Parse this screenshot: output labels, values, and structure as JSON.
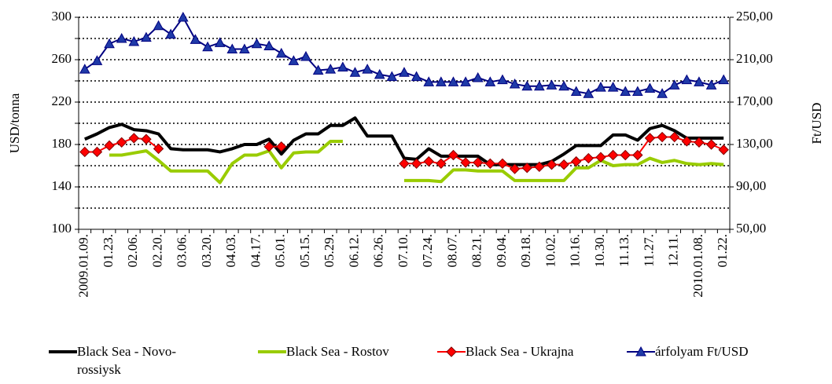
{
  "chart_data": {
    "type": "line",
    "ylabel": "USD/tonna",
    "y2label": "Ft/USD",
    "categories": [
      "2009.01.09.",
      null,
      "01.23.",
      null,
      "02.06.",
      null,
      "02.20.",
      null,
      "03.06.",
      null,
      "03.20.",
      null,
      "04.03.",
      null,
      "04.17.",
      null,
      "05.01.",
      null,
      "05.15.",
      null,
      "05.29.",
      null,
      "06.12.",
      null,
      "06.26.",
      null,
      "07.10.",
      null,
      "07.24.",
      null,
      "08.07.",
      null,
      "08.21.",
      null,
      "09.04.",
      null,
      "09.18.",
      null,
      "10.02.",
      null,
      "10.16.",
      null,
      "10.30.",
      null,
      "11.13.",
      null,
      "11.27.",
      null,
      "12.11.",
      null,
      "2010.01.08.",
      null,
      "01.22."
    ],
    "ylim": [
      100,
      300
    ],
    "yticks": [
      100,
      140,
      180,
      220,
      260,
      300
    ],
    "yminorticks": [
      120,
      160,
      200,
      240,
      280
    ],
    "y2lim": [
      50,
      250
    ],
    "y2ticks": [
      {
        "value": 50,
        "label": "50,00"
      },
      {
        "value": 90,
        "label": "90,00"
      },
      {
        "value": 130,
        "label": "130,00"
      },
      {
        "value": 170,
        "label": "170,00"
      },
      {
        "value": 210,
        "label": "210,00"
      },
      {
        "value": 250,
        "label": "250,00"
      }
    ],
    "grid": true,
    "legend": "bottom",
    "series": [
      {
        "name": "Black Sea - Novo-rossiysk",
        "color": "#000000",
        "marker": "none",
        "values": [
          185,
          190,
          196,
          199,
          194,
          193,
          190,
          176,
          175,
          175,
          175,
          173,
          176,
          180,
          180,
          185,
          171,
          184,
          190,
          190,
          198,
          198,
          205,
          188,
          188,
          188,
          167,
          166,
          176,
          169,
          169,
          169,
          169,
          161,
          161,
          161,
          161,
          161,
          164,
          171,
          179,
          179,
          179,
          189,
          189,
          184,
          195,
          198,
          193,
          186,
          186,
          186,
          186
        ]
      },
      {
        "name": "Black Sea - Rostov",
        "color": "#99cc00",
        "marker": "none",
        "values": [
          null,
          null,
          170,
          170,
          172,
          174,
          165,
          155,
          155,
          155,
          155,
          144,
          162,
          170,
          170,
          174,
          158,
          172,
          173,
          173,
          183,
          183,
          null,
          null,
          null,
          null,
          146,
          146,
          146,
          145,
          156,
          156,
          155,
          155,
          155,
          146,
          146,
          146,
          146,
          146,
          158,
          158,
          165,
          160,
          161,
          161,
          167,
          163,
          165,
          162,
          161,
          162,
          161
        ]
      },
      {
        "name": "Black Sea - Ukrajna",
        "color": "#ff0000",
        "marker": "diamond",
        "values": [
          173,
          173,
          179,
          182,
          186,
          185,
          176,
          null,
          null,
          null,
          null,
          null,
          null,
          null,
          null,
          178,
          178,
          null,
          null,
          null,
          null,
          null,
          null,
          null,
          null,
          null,
          162,
          162,
          164,
          162,
          170,
          163,
          163,
          162,
          162,
          157,
          158,
          159,
          161,
          161,
          164,
          167,
          168,
          170,
          170,
          170,
          186,
          187,
          187,
          183,
          182,
          180,
          175
        ]
      },
      {
        "name": "árfolyam Ft/USD",
        "color": "#000080",
        "marker": "triangle",
        "axis": "y2",
        "values": [
          201,
          209,
          225,
          230,
          227,
          231,
          242,
          234,
          250,
          229,
          222,
          226,
          220,
          220,
          225,
          223,
          216,
          209,
          213,
          200,
          201,
          203,
          198,
          201,
          196,
          194,
          198,
          194,
          189,
          189,
          189,
          189,
          193,
          189,
          191,
          187,
          185,
          185,
          186,
          185,
          180,
          178,
          184,
          184,
          180,
          180,
          183,
          178,
          186,
          191,
          189,
          186,
          191
        ]
      }
    ]
  }
}
